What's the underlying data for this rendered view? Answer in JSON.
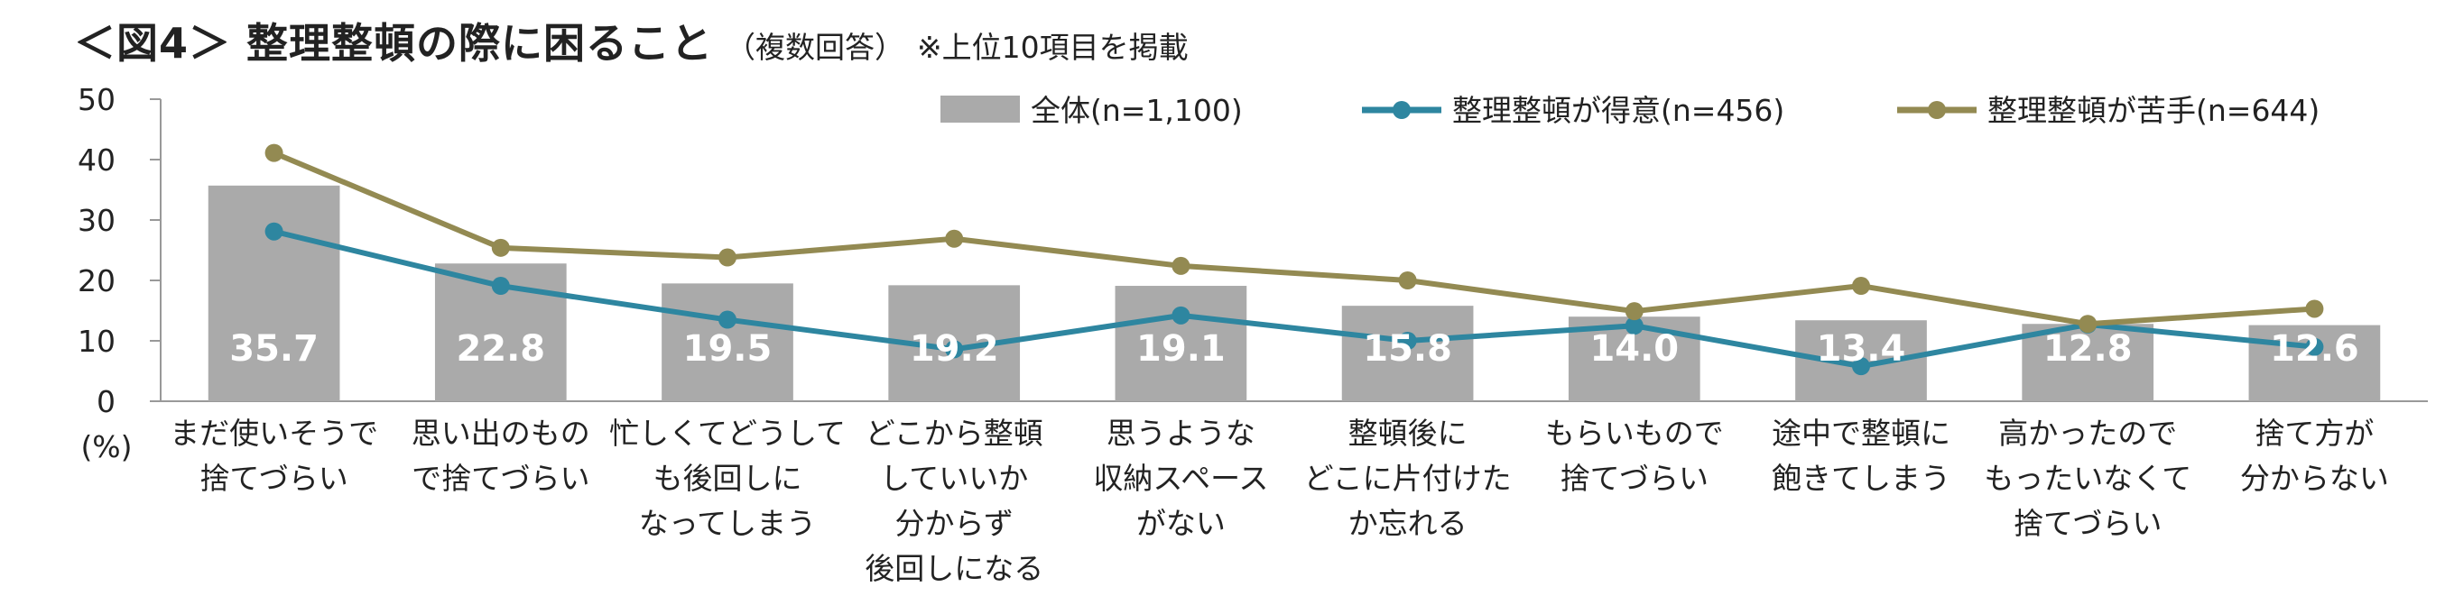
{
  "title": {
    "main": "＜図4＞ 整理整頓の際に困ること",
    "sub": "（複数回答）",
    "note": "※上位10項目を掲載"
  },
  "chart_data": {
    "type": "bar",
    "ylim": [
      0,
      50
    ],
    "yticks": [
      0,
      10,
      20,
      30,
      40,
      50
    ],
    "yunit": "(%)",
    "categories": [
      [
        "まだ使いそうで",
        "捨てづらい"
      ],
      [
        "思い出のもの",
        "で捨てづらい"
      ],
      [
        "忙しくてどうして",
        "も後回しに",
        "なってしまう"
      ],
      [
        "どこから整頓",
        "していいか",
        "分からず",
        "後回しになる"
      ],
      [
        "思うような",
        "収納スペース",
        "がない"
      ],
      [
        "整頓後に",
        "どこに片付けた",
        "か忘れる"
      ],
      [
        "もらいもので",
        "捨てづらい"
      ],
      [
        "途中で整頓に",
        "飽きてしまう"
      ],
      [
        "高かったので",
        "もったいなくて",
        "捨てづらい"
      ],
      [
        "捨て方が",
        "分からない"
      ]
    ],
    "series": [
      {
        "name": "全体(n=1,100)",
        "kind": "bar",
        "color": "#aaaaaa",
        "values": [
          35.7,
          22.8,
          19.5,
          19.2,
          19.1,
          15.8,
          14.0,
          13.4,
          12.8,
          12.6
        ]
      },
      {
        "name": "整理整頓が得意(n=456)",
        "kind": "line",
        "color": "#2e86a0",
        "values": [
          28.1,
          19.1,
          13.5,
          8.6,
          14.2,
          10.0,
          12.5,
          5.8,
          12.7,
          9.0
        ]
      },
      {
        "name": "整理整頓が苦手(n=644)",
        "kind": "line",
        "color": "#938a52",
        "values": [
          41.1,
          25.4,
          23.8,
          26.9,
          22.4,
          20.0,
          14.9,
          19.1,
          12.8,
          15.3
        ]
      }
    ],
    "data_labels": [
      "35.7",
      "22.8",
      "19.5",
      "19.2",
      "19.1",
      "15.8",
      "14.0",
      "13.4",
      "12.8",
      "12.6"
    ],
    "legend_position": "top-right",
    "grid": false
  }
}
